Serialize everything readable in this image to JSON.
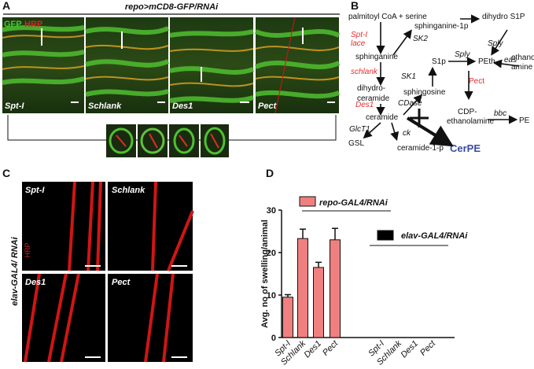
{
  "panel_a": {
    "letter": "A",
    "title": "repo>mCD8-GFP/RNAi",
    "channels": [
      "GFP",
      "HRP"
    ],
    "panels": [
      "Spt-I",
      "Schlank",
      "Des1",
      "Pect"
    ]
  },
  "panel_b": {
    "letter": "B",
    "labels": [
      "palmitoyl CoA + serine",
      "sphinganine-1p",
      "dihydro S1P",
      "Spt-I",
      "lace",
      "SK2",
      "Sply",
      "sphinganine",
      "S1p",
      "Sply",
      "PEth",
      "eas",
      "ethanol-",
      "amine",
      "schlank",
      "SK1",
      "Pect",
      "dihydro-",
      "ceramide",
      "sphingosine",
      "CDase",
      "Des1",
      "ceramide",
      "CDP-",
      "ethanolamine",
      "bbc",
      "PE",
      "GlcT1",
      "ck",
      "GSL",
      "ceramide-1-p",
      "CerPE"
    ]
  },
  "panel_c": {
    "letter": "C",
    "row_label": "elav-GAL4/ RNAi",
    "channel": "HRP",
    "panels": [
      "Spt-I",
      "Schlank",
      "Des1",
      "Pect"
    ]
  },
  "chart_data": {
    "type": "bar",
    "letter": "D",
    "ylabel": "Avg. no of swelling/animal",
    "categories": [
      "Spt-I",
      "Schlank",
      "Des1",
      "Pect",
      "Spt-I",
      "Schlank",
      "Des1",
      "Pect"
    ],
    "series": [
      {
        "name": "repo-GAL4/RNAi",
        "color": "#f08080",
        "values": [
          9.5,
          23.3,
          16.5,
          23,
          null,
          null,
          null,
          null
        ],
        "errors": [
          0.6,
          2.2,
          1.2,
          2.7,
          null,
          null,
          null,
          null
        ]
      },
      {
        "name": "elav-GAL4/RNAi",
        "color": "#000000",
        "values": [
          null,
          null,
          null,
          null,
          0,
          0,
          0,
          0
        ]
      }
    ],
    "ylim": [
      0,
      30
    ],
    "yticks": [
      0,
      10,
      20,
      30
    ]
  }
}
